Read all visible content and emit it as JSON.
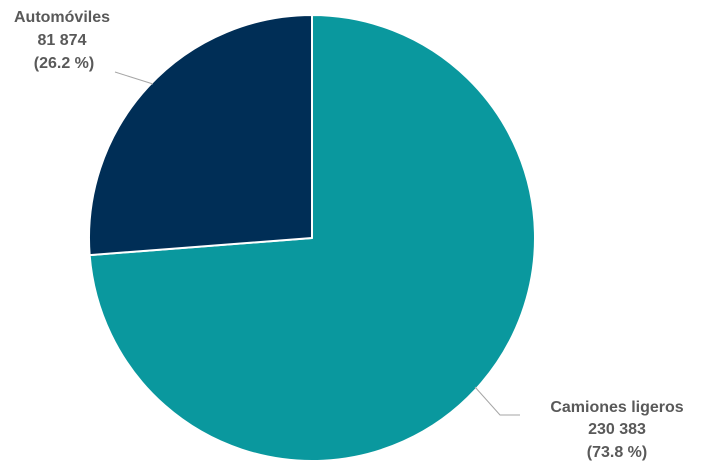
{
  "chart_data": {
    "type": "pie",
    "title": "",
    "categories": [
      "Camiones ligeros",
      "Automóviles"
    ],
    "values": [
      230383,
      81874
    ],
    "percentages": [
      73.8,
      26.2
    ],
    "colors": [
      "#0a989e",
      "#002e56"
    ],
    "labels": [
      {
        "name": "Camiones ligeros",
        "value": "230  383",
        "percent": "(73.8 %)"
      },
      {
        "name": "Automóviles",
        "value": "81 874",
        "percent": "(26.2 %)"
      }
    ],
    "legend": "none"
  }
}
